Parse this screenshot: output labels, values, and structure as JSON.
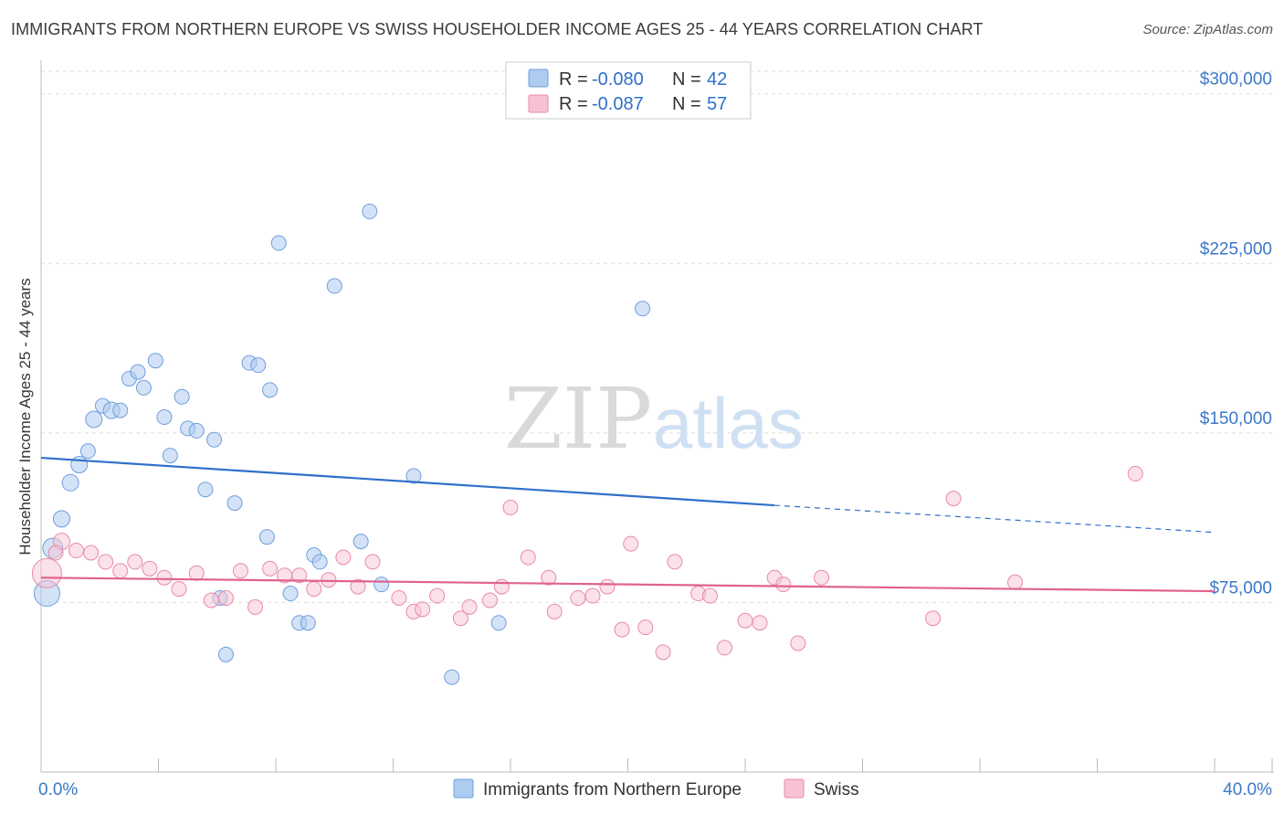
{
  "title": "IMMIGRANTS FROM NORTHERN EUROPE VS SWISS HOUSEHOLDER INCOME AGES 25 - 44 YEARS CORRELATION CHART",
  "source": "Source: ZipAtlas.com",
  "watermark": {
    "zip": "ZIP",
    "atlas": "atlas"
  },
  "legend_top": {
    "rows": [
      {
        "r_label": "R =",
        "r_value": "-0.080",
        "n_label": "N =",
        "n_value": "42",
        "color": "#aecbf0",
        "stroke": "#6f9fdc"
      },
      {
        "r_label": "R =",
        "r_value": "-0.087",
        "n_label": "N =",
        "n_value": "57",
        "color": "#f7c3d3",
        "stroke": "#e88aa8"
      }
    ]
  },
  "legend_bottom": [
    {
      "label": "Immigrants from Northern Europe",
      "color": "#aecbf0",
      "stroke": "#6f9fdc"
    },
    {
      "label": "Swiss",
      "color": "#f7c3d3",
      "stroke": "#e88aa8"
    }
  ],
  "colors": {
    "blue_fill": "#aecbf0",
    "blue_stroke": "#6f9fdc",
    "blue_line": "#2f6fca",
    "pink_fill": "#f7c3d3",
    "pink_stroke": "#e88aa8",
    "pink_line": "#e0638e",
    "grid": "#dddddd",
    "axis": "#bbbbbb"
  },
  "chart_data": {
    "type": "scatter",
    "title": "IMMIGRANTS FROM NORTHERN EUROPE VS SWISS HOUSEHOLDER INCOME AGES 25 - 44 YEARS CORRELATION CHART",
    "xlabel": "",
    "ylabel": "Householder Income Ages 25 - 44 years",
    "xlim": [
      0,
      40
    ],
    "ylim": [
      0,
      310000
    ],
    "x_tick_labels": [
      {
        "value": 0,
        "label": "0.0%"
      },
      {
        "value": 40,
        "label": "40.0%"
      }
    ],
    "y_ticks": [
      {
        "value": 75000,
        "label": "$75,000"
      },
      {
        "value": 150000,
        "label": "$150,000"
      },
      {
        "value": 225000,
        "label": "$225,000"
      },
      {
        "value": 300000,
        "label": "$300,000"
      }
    ],
    "series": [
      {
        "name": "Immigrants from Northern Europe",
        "R": -0.08,
        "N": 42,
        "trend": {
          "x_start": 0,
          "y_start": 139000,
          "x_solid_end": 25,
          "y_solid_end": 118000,
          "x_end": 40,
          "y_end": 106000
        },
        "points": [
          {
            "x": 0.2,
            "y": 79000,
            "size": 14
          },
          {
            "x": 0.4,
            "y": 99000,
            "size": 11
          },
          {
            "x": 0.7,
            "y": 112000,
            "size": 9
          },
          {
            "x": 1.0,
            "y": 128000,
            "size": 9
          },
          {
            "x": 1.3,
            "y": 136000,
            "size": 9
          },
          {
            "x": 1.6,
            "y": 142000,
            "size": 8
          },
          {
            "x": 1.8,
            "y": 156000,
            "size": 9
          },
          {
            "x": 2.1,
            "y": 162000,
            "size": 8
          },
          {
            "x": 2.4,
            "y": 160000,
            "size": 9
          },
          {
            "x": 2.7,
            "y": 160000,
            "size": 8
          },
          {
            "x": 3.0,
            "y": 174000,
            "size": 8
          },
          {
            "x": 3.3,
            "y": 177000,
            "size": 8
          },
          {
            "x": 3.5,
            "y": 170000,
            "size": 8
          },
          {
            "x": 3.9,
            "y": 182000,
            "size": 8
          },
          {
            "x": 4.2,
            "y": 157000,
            "size": 8
          },
          {
            "x": 4.4,
            "y": 140000,
            "size": 8
          },
          {
            "x": 4.8,
            "y": 166000,
            "size": 8
          },
          {
            "x": 5.0,
            "y": 152000,
            "size": 8
          },
          {
            "x": 5.3,
            "y": 151000,
            "size": 8
          },
          {
            "x": 5.6,
            "y": 125000,
            "size": 8
          },
          {
            "x": 5.9,
            "y": 147000,
            "size": 8
          },
          {
            "x": 6.1,
            "y": 77000,
            "size": 8
          },
          {
            "x": 6.3,
            "y": 52000,
            "size": 8
          },
          {
            "x": 6.6,
            "y": 119000,
            "size": 8
          },
          {
            "x": 7.1,
            "y": 181000,
            "size": 8
          },
          {
            "x": 7.4,
            "y": 180000,
            "size": 8
          },
          {
            "x": 7.7,
            "y": 104000,
            "size": 8
          },
          {
            "x": 7.8,
            "y": 169000,
            "size": 8
          },
          {
            "x": 8.1,
            "y": 234000,
            "size": 8
          },
          {
            "x": 8.5,
            "y": 79000,
            "size": 8
          },
          {
            "x": 8.8,
            "y": 66000,
            "size": 8
          },
          {
            "x": 9.1,
            "y": 66000,
            "size": 8
          },
          {
            "x": 9.3,
            "y": 96000,
            "size": 8
          },
          {
            "x": 9.5,
            "y": 93000,
            "size": 8
          },
          {
            "x": 10.0,
            "y": 215000,
            "size": 8
          },
          {
            "x": 10.9,
            "y": 102000,
            "size": 8
          },
          {
            "x": 11.2,
            "y": 248000,
            "size": 8
          },
          {
            "x": 11.6,
            "y": 83000,
            "size": 8
          },
          {
            "x": 12.7,
            "y": 131000,
            "size": 8
          },
          {
            "x": 14.0,
            "y": 42000,
            "size": 8
          },
          {
            "x": 15.6,
            "y": 66000,
            "size": 8
          },
          {
            "x": 20.5,
            "y": 205000,
            "size": 8
          }
        ]
      },
      {
        "name": "Swiss",
        "R": -0.087,
        "N": 57,
        "trend": {
          "x_start": 0,
          "y_start": 86000,
          "x_end": 40,
          "y_end": 80000
        },
        "points": [
          {
            "x": 0.2,
            "y": 88000,
            "size": 16
          },
          {
            "x": 0.7,
            "y": 102000,
            "size": 9
          },
          {
            "x": 1.2,
            "y": 98000,
            "size": 8
          },
          {
            "x": 1.7,
            "y": 97000,
            "size": 8
          },
          {
            "x": 2.2,
            "y": 93000,
            "size": 8
          },
          {
            "x": 2.7,
            "y": 89000,
            "size": 8
          },
          {
            "x": 3.2,
            "y": 93000,
            "size": 8
          },
          {
            "x": 3.7,
            "y": 90000,
            "size": 8
          },
          {
            "x": 4.2,
            "y": 86000,
            "size": 8
          },
          {
            "x": 4.7,
            "y": 81000,
            "size": 8
          },
          {
            "x": 5.3,
            "y": 88000,
            "size": 8
          },
          {
            "x": 5.8,
            "y": 76000,
            "size": 8
          },
          {
            "x": 6.3,
            "y": 77000,
            "size": 8
          },
          {
            "x": 6.8,
            "y": 89000,
            "size": 8
          },
          {
            "x": 7.3,
            "y": 73000,
            "size": 8
          },
          {
            "x": 7.8,
            "y": 90000,
            "size": 8
          },
          {
            "x": 8.3,
            "y": 87000,
            "size": 8
          },
          {
            "x": 8.8,
            "y": 87000,
            "size": 8
          },
          {
            "x": 9.3,
            "y": 81000,
            "size": 8
          },
          {
            "x": 9.8,
            "y": 85000,
            "size": 8
          },
          {
            "x": 10.3,
            "y": 95000,
            "size": 8
          },
          {
            "x": 10.8,
            "y": 82000,
            "size": 8
          },
          {
            "x": 11.3,
            "y": 93000,
            "size": 8
          },
          {
            "x": 12.2,
            "y": 77000,
            "size": 8
          },
          {
            "x": 12.7,
            "y": 71000,
            "size": 8
          },
          {
            "x": 13.0,
            "y": 72000,
            "size": 8
          },
          {
            "x": 13.5,
            "y": 78000,
            "size": 8
          },
          {
            "x": 14.3,
            "y": 68000,
            "size": 8
          },
          {
            "x": 14.6,
            "y": 73000,
            "size": 8
          },
          {
            "x": 15.3,
            "y": 76000,
            "size": 8
          },
          {
            "x": 15.7,
            "y": 82000,
            "size": 8
          },
          {
            "x": 16.0,
            "y": 117000,
            "size": 8
          },
          {
            "x": 16.6,
            "y": 95000,
            "size": 8
          },
          {
            "x": 17.3,
            "y": 86000,
            "size": 8
          },
          {
            "x": 17.5,
            "y": 71000,
            "size": 8
          },
          {
            "x": 18.3,
            "y": 77000,
            "size": 8
          },
          {
            "x": 18.8,
            "y": 78000,
            "size": 8
          },
          {
            "x": 19.3,
            "y": 82000,
            "size": 8
          },
          {
            "x": 19.8,
            "y": 63000,
            "size": 8
          },
          {
            "x": 20.1,
            "y": 101000,
            "size": 8
          },
          {
            "x": 20.6,
            "y": 64000,
            "size": 8
          },
          {
            "x": 21.2,
            "y": 53000,
            "size": 8
          },
          {
            "x": 21.6,
            "y": 93000,
            "size": 8
          },
          {
            "x": 22.4,
            "y": 79000,
            "size": 8
          },
          {
            "x": 22.8,
            "y": 78000,
            "size": 8
          },
          {
            "x": 23.3,
            "y": 55000,
            "size": 8
          },
          {
            "x": 24.0,
            "y": 67000,
            "size": 8
          },
          {
            "x": 24.5,
            "y": 66000,
            "size": 8
          },
          {
            "x": 25.0,
            "y": 86000,
            "size": 8
          },
          {
            "x": 25.3,
            "y": 83000,
            "size": 8
          },
          {
            "x": 25.8,
            "y": 57000,
            "size": 8
          },
          {
            "x": 26.6,
            "y": 86000,
            "size": 8
          },
          {
            "x": 30.4,
            "y": 68000,
            "size": 8
          },
          {
            "x": 31.1,
            "y": 121000,
            "size": 8
          },
          {
            "x": 33.2,
            "y": 84000,
            "size": 8
          },
          {
            "x": 37.3,
            "y": 132000,
            "size": 8
          },
          {
            "x": 0.5,
            "y": 97000,
            "size": 8
          }
        ]
      }
    ]
  }
}
